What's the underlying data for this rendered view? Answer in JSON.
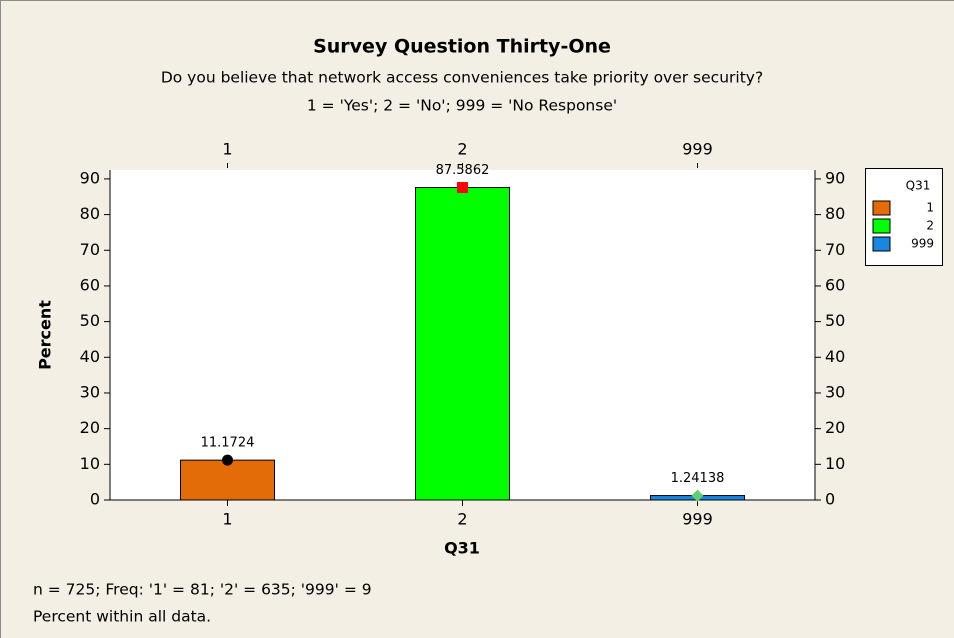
{
  "chart_data": {
    "type": "bar",
    "title": "Survey Question Thirty-One",
    "subtitle": [
      "Do you believe that network access conveniences take priority over security?",
      "1 = 'Yes'; 2 = 'No'; 999 = 'No Response'"
    ],
    "x_label": "Q31",
    "y_label": "Percent",
    "legend_title": "Q31",
    "categories": [
      "1",
      "2",
      "999"
    ],
    "values": [
      11.1724,
      87.5862,
      1.24138
    ],
    "colors": [
      "#e36c09",
      "#00ff00",
      "#1a86e0"
    ],
    "marker_colors": [
      "#000000",
      "#ff0000",
      "#5fcf6f"
    ],
    "ylim": [
      0,
      92.5
    ],
    "yticks": [
      0,
      10,
      20,
      30,
      40,
      50,
      60,
      70,
      80,
      90
    ],
    "legend_position": "right",
    "notes": [
      "n = 725; Freq: '1' = 81; '2' = 635; '999' = 9",
      "Percent within all data."
    ]
  }
}
